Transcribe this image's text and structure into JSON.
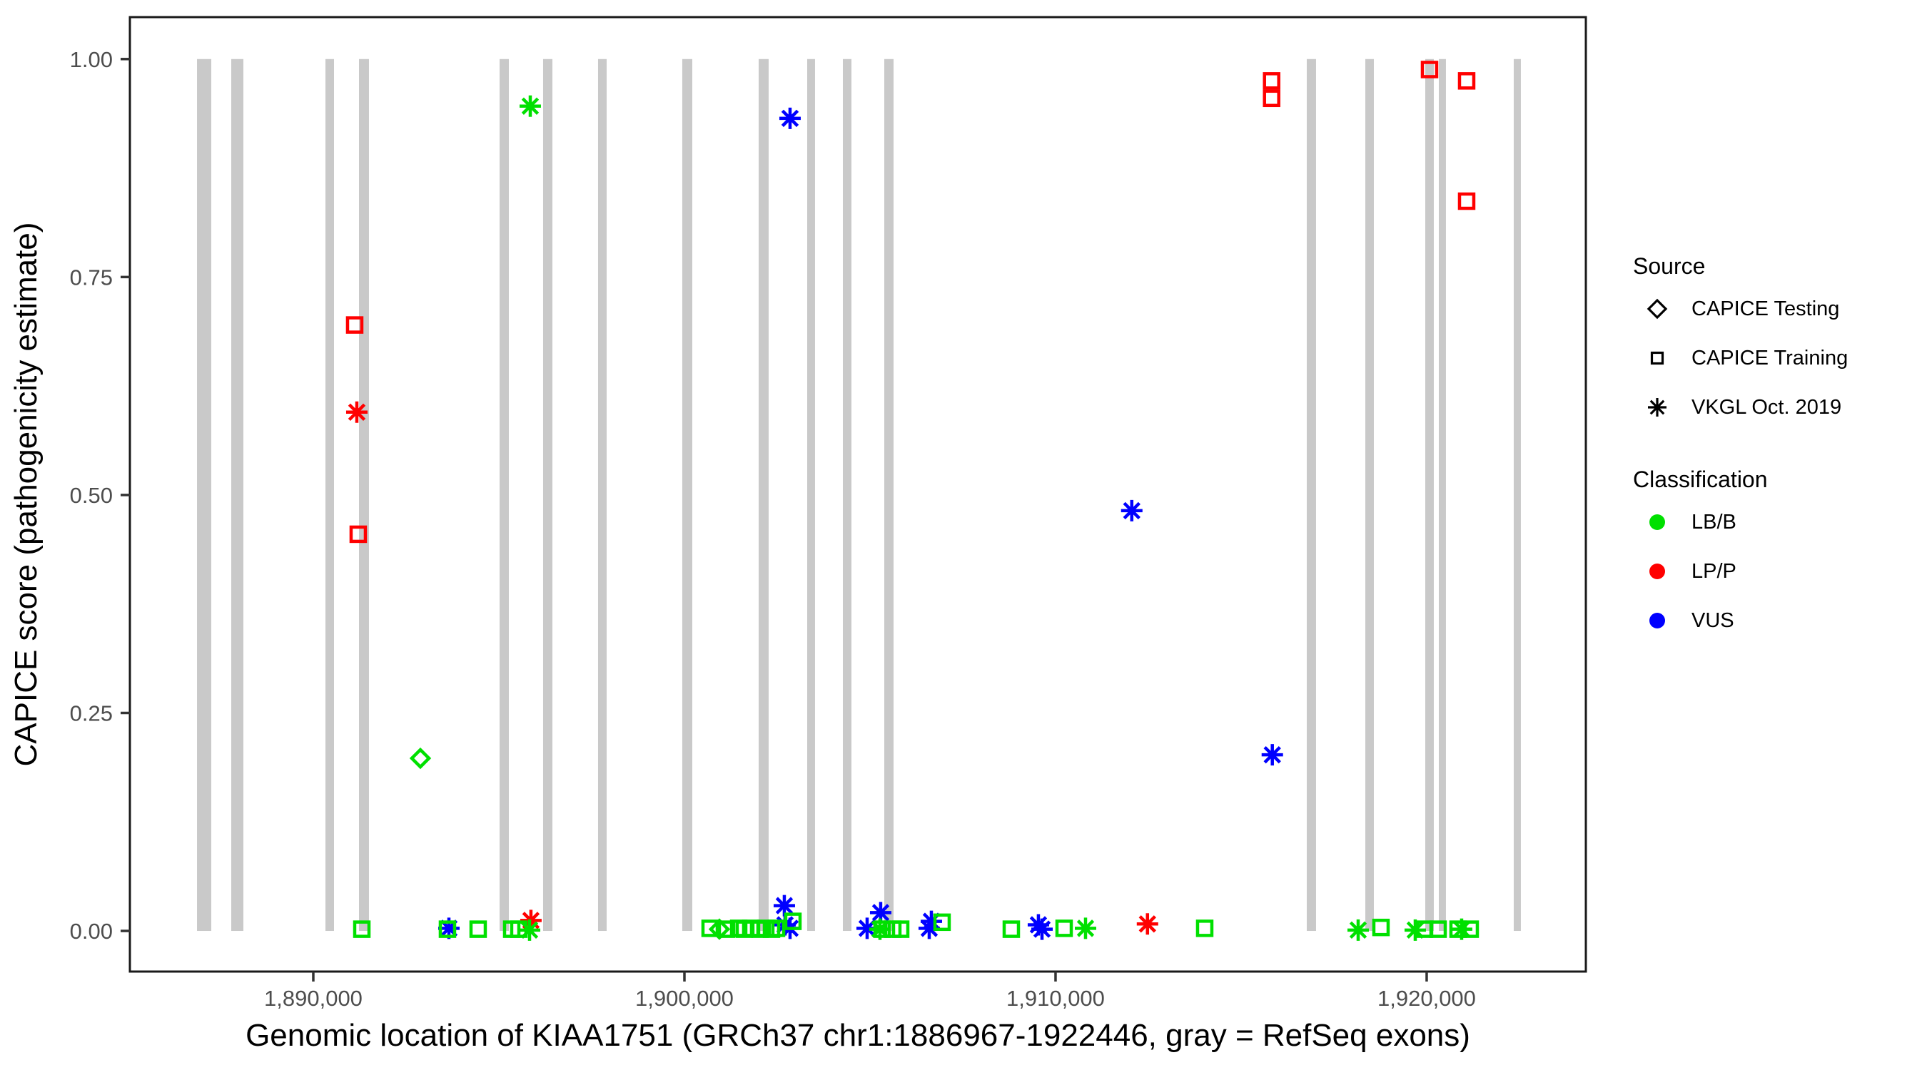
{
  "figure": {
    "x_axis_title": "Genomic location of KIAA1751 (GRCh37 chr1:1886967-1922446, gray = RefSeq exons)",
    "y_axis_title": "CAPICE score (pathogenicity estimate)"
  },
  "legend": {
    "source": {
      "title": "Source",
      "items": [
        {
          "label": "CAPICE Testing",
          "shape": "diamond"
        },
        {
          "label": "CAPICE Training",
          "shape": "square"
        },
        {
          "label": "VKGL Oct. 2019",
          "shape": "asterisk"
        }
      ]
    },
    "classification": {
      "title": "Classification",
      "items": [
        {
          "label": "LB/B",
          "color": "#00e000"
        },
        {
          "label": "LP/P",
          "color": "#ff0000"
        },
        {
          "label": "VUS",
          "color": "#0000ff"
        }
      ]
    }
  },
  "chart_data": {
    "type": "scatter",
    "title": "",
    "xlabel": "Genomic location of KIAA1751 (GRCh37 chr1:1886967-1922446, gray = RefSeq exons)",
    "ylabel": "CAPICE score (pathogenicity estimate)",
    "xlim": [
      1885058,
      1924289
    ],
    "ylim": [
      -0.0466,
      1.0481
    ],
    "grid": false,
    "legend_position": "right",
    "x_ticks": [
      {
        "value": 1890000,
        "label": "1,890,000"
      },
      {
        "value": 1900000,
        "label": "1,900,000"
      },
      {
        "value": 1910000,
        "label": "1,910,000"
      },
      {
        "value": 1920000,
        "label": "1,920,000"
      }
    ],
    "y_ticks": [
      {
        "value": 0.0,
        "label": "0.00"
      },
      {
        "value": 0.25,
        "label": "0.25"
      },
      {
        "value": 0.5,
        "label": "0.50"
      },
      {
        "value": 0.75,
        "label": "0.75"
      },
      {
        "value": 1.0,
        "label": "1.00"
      }
    ],
    "colors": {
      "exon": "#c9c9c9",
      "panel_border": "#1a1a1a",
      "tick_mark": "#333333",
      "tick_label": "#4d4d4d"
    },
    "exons_note": "gray bars = RefSeq exons, drawn spanning score 0 to 1",
    "exons": [
      [
        1886866,
        1887251
      ],
      [
        1887789,
        1888116
      ],
      [
        1890327,
        1890558
      ],
      [
        1891231,
        1891500
      ],
      [
        1895019,
        1895269
      ],
      [
        1896192,
        1896442
      ],
      [
        1897673,
        1897904
      ],
      [
        1899942,
        1900212
      ],
      [
        1902000,
        1902269
      ],
      [
        1903308,
        1903519
      ],
      [
        1904269,
        1904500
      ],
      [
        1905385,
        1905635
      ],
      [
        1916769,
        1917019
      ],
      [
        1918346,
        1918577
      ],
      [
        1919962,
        1920192
      ],
      [
        1920327,
        1920519
      ],
      [
        1922346,
        1922538
      ]
    ],
    "points": [
      {
        "bp": 1891115,
        "score": 0.695,
        "source": "CAPICE Training",
        "classification": "LP/P"
      },
      {
        "bp": 1891173,
        "score": 0.595,
        "source": "VKGL Oct. 2019",
        "classification": "LP/P"
      },
      {
        "bp": 1891211,
        "score": 0.455,
        "source": "CAPICE Training",
        "classification": "LP/P"
      },
      {
        "bp": 1895864,
        "score": 0.012,
        "source": "VKGL Oct. 2019",
        "classification": "LP/P"
      },
      {
        "bp": 1912477,
        "score": 0.008,
        "source": "VKGL Oct. 2019",
        "classification": "LP/P"
      },
      {
        "bp": 1915822,
        "score": 0.975,
        "source": "CAPICE Training",
        "classification": "LP/P"
      },
      {
        "bp": 1915822,
        "score": 0.955,
        "source": "CAPICE Training",
        "classification": "LP/P"
      },
      {
        "bp": 1920077,
        "score": 0.988,
        "source": "CAPICE Training",
        "classification": "LP/P"
      },
      {
        "bp": 1921077,
        "score": 0.975,
        "source": "CAPICE Training",
        "classification": "LP/P"
      },
      {
        "bp": 1921077,
        "score": 0.837,
        "source": "CAPICE Training",
        "classification": "LP/P"
      },
      {
        "bp": 1893654,
        "score": 0.003,
        "source": "VKGL Oct. 2019",
        "classification": "VUS"
      },
      {
        "bp": 1902692,
        "score": 0.029,
        "source": "VKGL Oct. 2019",
        "classification": "VUS"
      },
      {
        "bp": 1902711,
        "score": 0.007,
        "source": "VKGL Oct. 2019",
        "classification": "VUS"
      },
      {
        "bp": 1902846,
        "score": 0.003,
        "source": "VKGL Oct. 2019",
        "classification": "VUS"
      },
      {
        "bp": 1902846,
        "score": 0.932,
        "source": "VKGL Oct. 2019",
        "classification": "VUS"
      },
      {
        "bp": 1904923,
        "score": 0.003,
        "source": "VKGL Oct. 2019",
        "classification": "VUS"
      },
      {
        "bp": 1905288,
        "score": 0.021,
        "source": "VKGL Oct. 2019",
        "classification": "VUS"
      },
      {
        "bp": 1906596,
        "score": 0.003,
        "source": "VKGL Oct. 2019",
        "classification": "VUS"
      },
      {
        "bp": 1906654,
        "score": 0.011,
        "source": "VKGL Oct. 2019",
        "classification": "VUS"
      },
      {
        "bp": 1909538,
        "score": 0.007,
        "source": "VKGL Oct. 2019",
        "classification": "VUS"
      },
      {
        "bp": 1909635,
        "score": 0.002,
        "source": "VKGL Oct. 2019",
        "classification": "VUS"
      },
      {
        "bp": 1912054,
        "score": 0.482,
        "source": "VKGL Oct. 2019",
        "classification": "VUS"
      },
      {
        "bp": 1915841,
        "score": 0.202,
        "source": "VKGL Oct. 2019",
        "classification": "VUS"
      },
      {
        "bp": 1892885,
        "score": 0.198,
        "source": "CAPICE Testing",
        "classification": "LB/B"
      },
      {
        "bp": 1900942,
        "score": 0.002,
        "source": "CAPICE Testing",
        "classification": "LB/B"
      },
      {
        "bp": 1895827,
        "score": 0.001,
        "source": "VKGL Oct. 2019",
        "classification": "LB/B"
      },
      {
        "bp": 1895846,
        "score": 0.946,
        "source": "VKGL Oct. 2019",
        "classification": "LB/B"
      },
      {
        "bp": 1905269,
        "score": 0.002,
        "source": "VKGL Oct. 2019",
        "classification": "LB/B"
      },
      {
        "bp": 1910808,
        "score": 0.003,
        "source": "VKGL Oct. 2019",
        "classification": "LB/B"
      },
      {
        "bp": 1918154,
        "score": 0.001,
        "source": "VKGL Oct. 2019",
        "classification": "LB/B"
      },
      {
        "bp": 1919692,
        "score": 0.001,
        "source": "VKGL Oct. 2019",
        "classification": "LB/B"
      },
      {
        "bp": 1920942,
        "score": 0.002,
        "source": "VKGL Oct. 2019",
        "classification": "LB/B"
      },
      {
        "bp": 1891308,
        "score": 0.002,
        "source": "CAPICE Training",
        "classification": "LB/B"
      },
      {
        "bp": 1893615,
        "score": 0.002,
        "source": "CAPICE Training",
        "classification": "LB/B"
      },
      {
        "bp": 1894442,
        "score": 0.002,
        "source": "CAPICE Training",
        "classification": "LB/B"
      },
      {
        "bp": 1895346,
        "score": 0.002,
        "source": "CAPICE Training",
        "classification": "LB/B"
      },
      {
        "bp": 1895538,
        "score": 0.002,
        "source": "CAPICE Training",
        "classification": "LB/B"
      },
      {
        "bp": 1900692,
        "score": 0.003,
        "source": "CAPICE Training",
        "classification": "LB/B"
      },
      {
        "bp": 1901135,
        "score": 0.002,
        "source": "CAPICE Training",
        "classification": "LB/B"
      },
      {
        "bp": 1901462,
        "score": 0.003,
        "source": "CAPICE Training",
        "classification": "LB/B"
      },
      {
        "bp": 1901615,
        "score": 0.002,
        "source": "CAPICE Training",
        "classification": "LB/B"
      },
      {
        "bp": 1901788,
        "score": 0.003,
        "source": "CAPICE Training",
        "classification": "LB/B"
      },
      {
        "bp": 1902038,
        "score": 0.002,
        "source": "CAPICE Training",
        "classification": "LB/B"
      },
      {
        "bp": 1902192,
        "score": 0.003,
        "source": "CAPICE Training",
        "classification": "LB/B"
      },
      {
        "bp": 1902346,
        "score": 0.002,
        "source": "CAPICE Training",
        "classification": "LB/B"
      },
      {
        "bp": 1902481,
        "score": 0.003,
        "source": "CAPICE Training",
        "classification": "LB/B"
      },
      {
        "bp": 1902923,
        "score": 0.011,
        "source": "CAPICE Training",
        "classification": "LB/B"
      },
      {
        "bp": 1905327,
        "score": 0.002,
        "source": "CAPICE Training",
        "classification": "LB/B"
      },
      {
        "bp": 1905615,
        "score": 0.002,
        "source": "CAPICE Training",
        "classification": "LB/B"
      },
      {
        "bp": 1905827,
        "score": 0.002,
        "source": "CAPICE Training",
        "classification": "LB/B"
      },
      {
        "bp": 1906942,
        "score": 0.01,
        "source": "CAPICE Training",
        "classification": "LB/B"
      },
      {
        "bp": 1908808,
        "score": 0.002,
        "source": "CAPICE Training",
        "classification": "LB/B"
      },
      {
        "bp": 1910231,
        "score": 0.003,
        "source": "CAPICE Training",
        "classification": "LB/B"
      },
      {
        "bp": 1914019,
        "score": 0.003,
        "source": "CAPICE Training",
        "classification": "LB/B"
      },
      {
        "bp": 1918769,
        "score": 0.004,
        "source": "CAPICE Training",
        "classification": "LB/B"
      },
      {
        "bp": 1919942,
        "score": 0.002,
        "source": "CAPICE Training",
        "classification": "LB/B"
      },
      {
        "bp": 1920308,
        "score": 0.002,
        "source": "CAPICE Training",
        "classification": "LB/B"
      },
      {
        "bp": 1920846,
        "score": 0.002,
        "source": "CAPICE Training",
        "classification": "LB/B"
      },
      {
        "bp": 1921173,
        "score": 0.002,
        "source": "CAPICE Training",
        "classification": "LB/B"
      }
    ]
  }
}
